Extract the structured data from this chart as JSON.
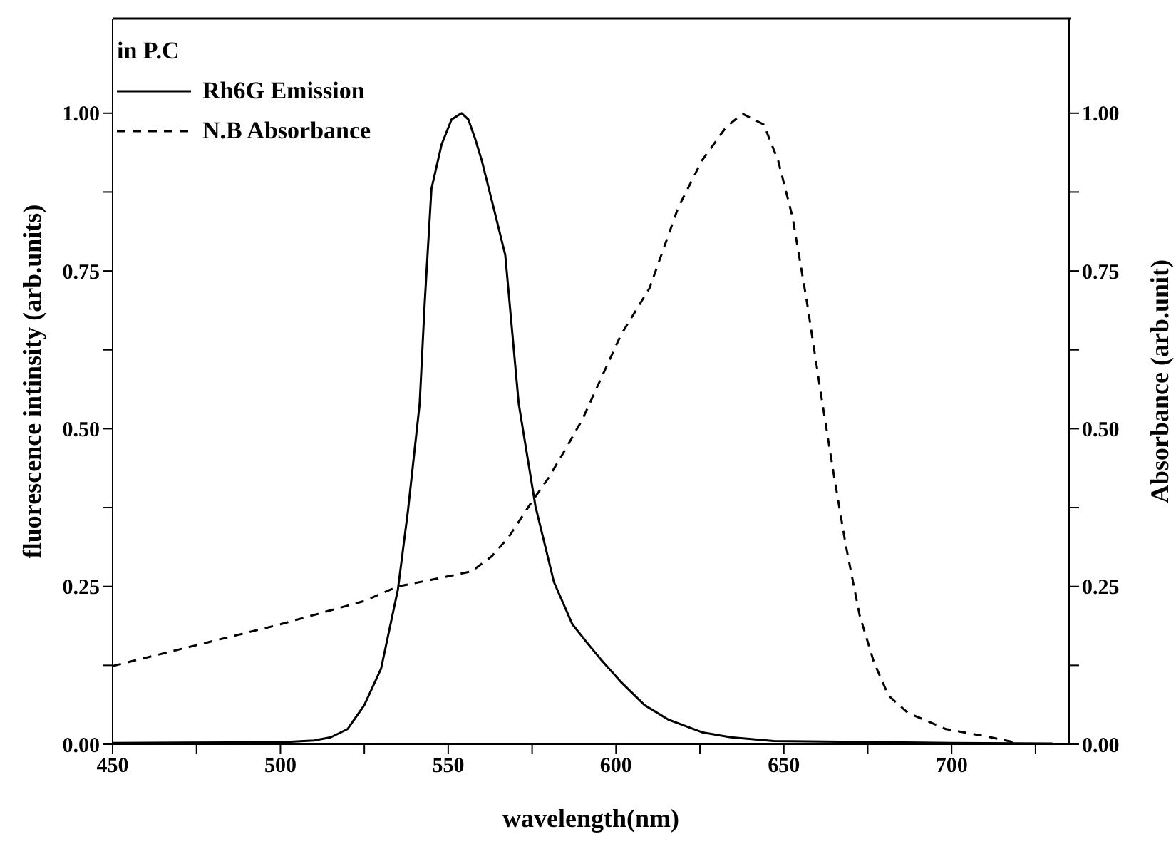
{
  "chart_data": {
    "type": "line",
    "xlabel": "wavelength(nm)",
    "ylabel": "fluorescence intinsity (arb.units)",
    "y2label": "Absorbance (arb.unit)",
    "legend_title": "in P.C",
    "legend": "top left",
    "grid": false,
    "marker": "none",
    "xlim": [
      450,
      735
    ],
    "xticks": [
      450,
      {
        "value": 475,
        "label": null
      },
      500,
      {
        "value": 525,
        "label": null
      },
      550,
      {
        "value": 575,
        "label": null
      },
      600,
      {
        "value": 625,
        "label": null
      },
      650,
      {
        "value": 675,
        "label": null
      },
      700,
      {
        "value": 725,
        "label": null
      }
    ],
    "ylim": [
      0,
      1.15
    ],
    "yticks": [
      {
        "value": 0,
        "label": "0.00"
      },
      {
        "value": 0.125,
        "label": null
      },
      0.25,
      {
        "value": 0.375,
        "label": null
      },
      {
        "value": 0.5,
        "label": "0.50"
      },
      {
        "value": 0.625,
        "label": null
      },
      0.75,
      {
        "value": 0.875,
        "label": null
      },
      {
        "value": 1,
        "label": "1.00"
      }
    ],
    "y2lim": [
      0,
      1.15
    ],
    "y2ticks": [
      {
        "value": 0,
        "label": "0.00"
      },
      {
        "value": 0.125,
        "label": null
      },
      0.25,
      {
        "value": 0.375,
        "label": null
      },
      {
        "value": 0.5,
        "label": "0.50"
      },
      {
        "value": 0.625,
        "label": null
      },
      0.75,
      {
        "value": 0.875,
        "label": null
      },
      {
        "value": 1,
        "label": "1.00"
      }
    ],
    "series": [
      {
        "name": "Rh6G Emission",
        "color": "#000000",
        "line_style": "solid",
        "x": [
          450,
          500,
          510,
          515,
          520,
          525,
          530,
          535,
          538,
          541.5,
          543,
          545,
          548,
          551,
          554,
          556,
          558,
          560,
          564,
          567,
          571,
          576,
          581.5,
          587,
          591.5,
          595.7,
          601.4,
          608.5,
          615.6,
          625.6,
          634.2,
          647,
          700,
          730
        ],
        "values": [
          0.002,
          0.003,
          0.006,
          0.011,
          0.024,
          0.062,
          0.12,
          0.245,
          0.37,
          0.54,
          0.7,
          0.88,
          0.95,
          0.99,
          1.0,
          0.99,
          0.96,
          0.925,
          0.84,
          0.775,
          0.54,
          0.377,
          0.257,
          0.19,
          0.16,
          0.133,
          0.099,
          0.062,
          0.039,
          0.019,
          0.011,
          0.005,
          0.002,
          0.001
        ]
      },
      {
        "name": "N.B Absorbance",
        "color": "#000000",
        "line_style": "dashed",
        "axis": "y2",
        "x": [
          450,
          500,
          525,
          535,
          550,
          557,
          563,
          568,
          575,
          580,
          585,
          590,
          601.4,
          610,
          618.5,
          625.6,
          632.8,
          637.7,
          644,
          648.3,
          652.6,
          656.9,
          661.2,
          664.8,
          668.4,
          672.6,
          676.9,
          681.2,
          686.9,
          698.3,
          709.7,
          719.7
        ],
        "values": [
          0.124,
          0.19,
          0.227,
          0.25,
          0.266,
          0.274,
          0.298,
          0.328,
          0.385,
          0.423,
          0.468,
          0.515,
          0.648,
          0.723,
          0.85,
          0.925,
          0.978,
          0.999,
          0.982,
          0.925,
          0.835,
          0.7,
          0.55,
          0.43,
          0.317,
          0.204,
          0.129,
          0.077,
          0.05,
          0.024,
          0.013,
          0.002
        ]
      }
    ]
  }
}
